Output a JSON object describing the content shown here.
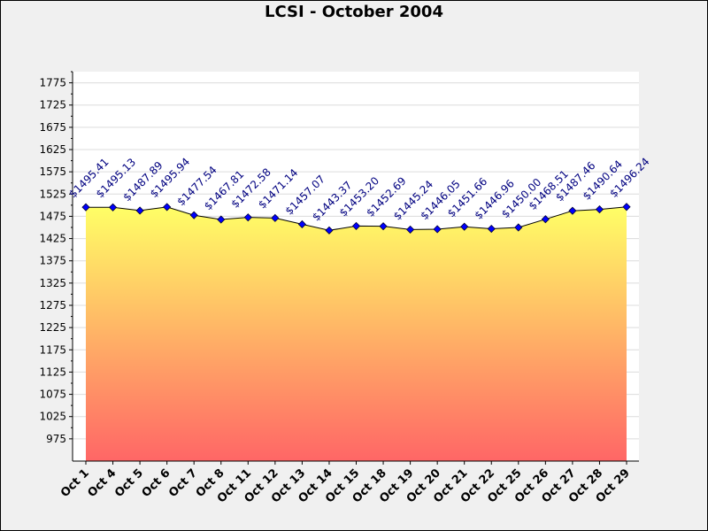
{
  "chart_data": {
    "type": "area",
    "title": "LCSI - October 2004",
    "categories": [
      "Oct 1",
      "Oct 4",
      "Oct 5",
      "Oct 6",
      "Oct 7",
      "Oct 8",
      "Oct 11",
      "Oct 12",
      "Oct 13",
      "Oct 14",
      "Oct 15",
      "Oct 18",
      "Oct 19",
      "Oct 20",
      "Oct 21",
      "Oct 22",
      "Oct 25",
      "Oct 26",
      "Oct 27",
      "Oct 28",
      "Oct 29"
    ],
    "values": [
      1495.41,
      1495.13,
      1487.89,
      1495.94,
      1477.54,
      1467.81,
      1472.58,
      1471.14,
      1457.07,
      1443.37,
      1453.2,
      1452.69,
      1445.24,
      1446.05,
      1451.66,
      1446.96,
      1450.0,
      1468.51,
      1487.46,
      1490.64,
      1496.24
    ],
    "data_labels": [
      "$1495.41",
      "$1495.13",
      "$1487.89",
      "$1495.94",
      "$1477.54",
      "$1467.81",
      "$1472.58",
      "$1471.14",
      "$1457.07",
      "$1443.37",
      "$1453.20",
      "$1452.69",
      "$1445.24",
      "$1446.05",
      "$1451.66",
      "$1446.96",
      "$1450.00",
      "$1468.51",
      "$1487.46",
      "$1490.64",
      "$1496.24"
    ],
    "y_ticks": [
      975,
      1025,
      1075,
      1125,
      1175,
      1225,
      1275,
      1325,
      1375,
      1425,
      1475,
      1525,
      1575,
      1625,
      1675,
      1725,
      1775
    ],
    "ylim": [
      925,
      1800
    ],
    "xlabel": "",
    "ylabel": "",
    "grid": true,
    "colors": {
      "fill_top": "#ffff66",
      "fill_bottom": "#ff6666",
      "line": "#000000",
      "marker": "#0000ff",
      "data_label": "#000080",
      "grid": "#dcdcdc",
      "plot_bg": "#ffffff",
      "frame_bg": "#f0f0f0"
    }
  }
}
